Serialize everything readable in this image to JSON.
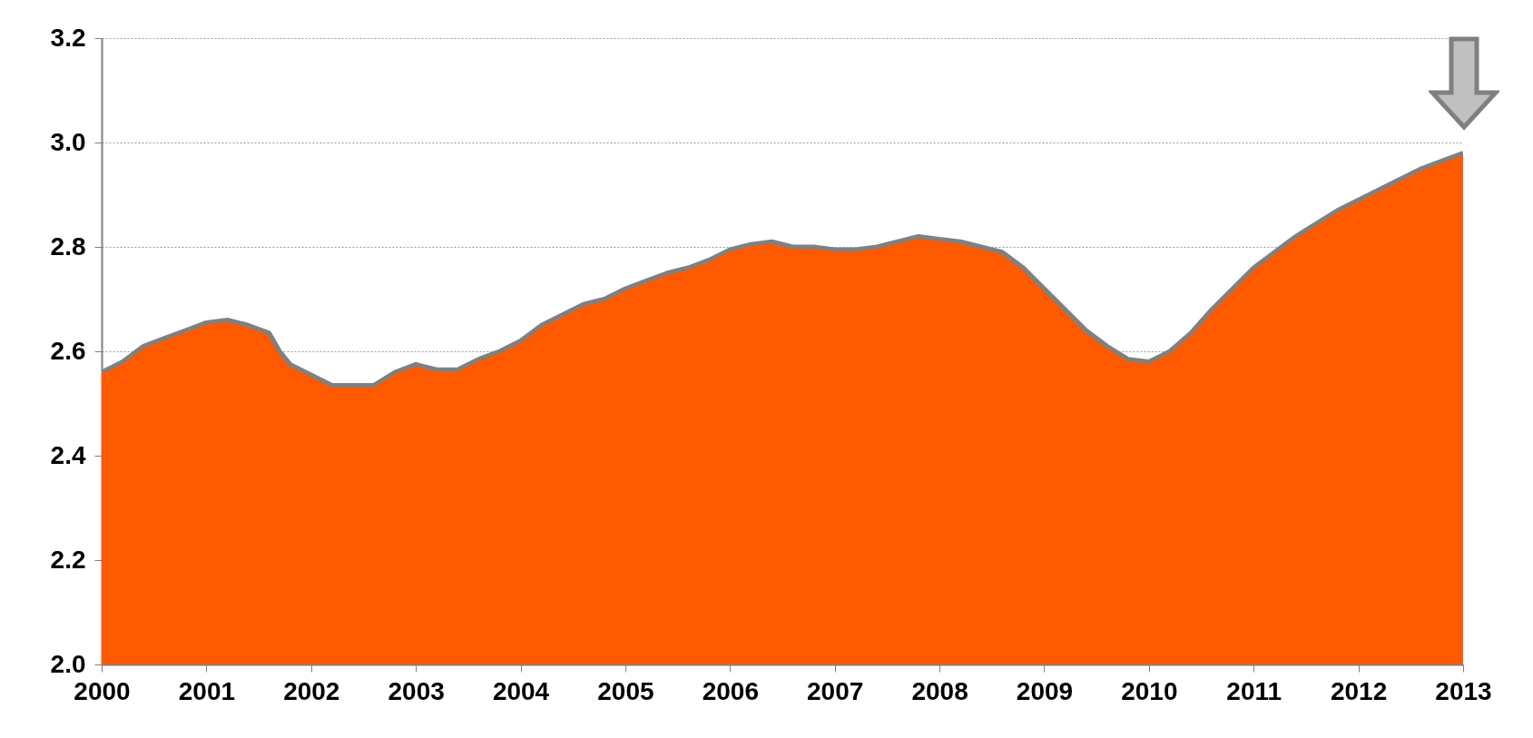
{
  "chart_data": {
    "type": "area",
    "x": [
      2000,
      2000.2,
      2000.4,
      2000.6,
      2000.8,
      2001,
      2001.2,
      2001.4,
      2001.6,
      2001.7,
      2001.8,
      2002,
      2002.2,
      2002.4,
      2002.6,
      2002.8,
      2003,
      2003.2,
      2003.4,
      2003.6,
      2003.8,
      2004,
      2004.2,
      2004.4,
      2004.6,
      2004.8,
      2005,
      2005.2,
      2005.4,
      2005.6,
      2005.8,
      2006,
      2006.2,
      2006.4,
      2006.6,
      2006.8,
      2007,
      2007.2,
      2007.4,
      2007.6,
      2007.8,
      2008,
      2008.2,
      2008.4,
      2008.6,
      2008.8,
      2009,
      2009.2,
      2009.4,
      2009.6,
      2009.8,
      2010,
      2010.2,
      2010.4,
      2010.6,
      2010.8,
      2011,
      2011.2,
      2011.4,
      2011.6,
      2011.8,
      2012,
      2012.2,
      2012.4,
      2012.6,
      2012.8,
      2013
    ],
    "series": [
      {
        "color": "#ff5a00",
        "values": [
          2.56,
          2.58,
          2.61,
          2.625,
          2.64,
          2.655,
          2.66,
          2.65,
          2.635,
          2.6,
          2.575,
          2.555,
          2.535,
          2.535,
          2.535,
          2.56,
          2.575,
          2.565,
          2.565,
          2.585,
          2.6,
          2.62,
          2.65,
          2.67,
          2.69,
          2.7,
          2.72,
          2.735,
          2.75,
          2.76,
          2.775,
          2.795,
          2.805,
          2.81,
          2.8,
          2.8,
          2.795,
          2.795,
          2.8,
          2.81,
          2.82,
          2.815,
          2.81,
          2.8,
          2.79,
          2.76,
          2.72,
          2.68,
          2.64,
          2.61,
          2.585,
          2.58,
          2.6,
          2.635,
          2.68,
          2.72,
          2.76,
          2.79,
          2.82,
          2.845,
          2.87,
          2.89,
          2.91,
          2.93,
          2.95,
          2.965,
          2.98
        ]
      }
    ],
    "xlim": [
      2000,
      2013
    ],
    "xticks": [
      2000,
      2001,
      2002,
      2003,
      2004,
      2005,
      2006,
      2007,
      2008,
      2009,
      2010,
      2011,
      2012,
      2013
    ],
    "ylim": [
      2.0,
      3.2
    ],
    "yticks": [
      {
        "value": 2.0,
        "label": "2.0"
      },
      2.2,
      2.4,
      2.6,
      2.8,
      {
        "value": 3.0,
        "label": "3.0"
      },
      3.2
    ],
    "grid": "y"
  }
}
